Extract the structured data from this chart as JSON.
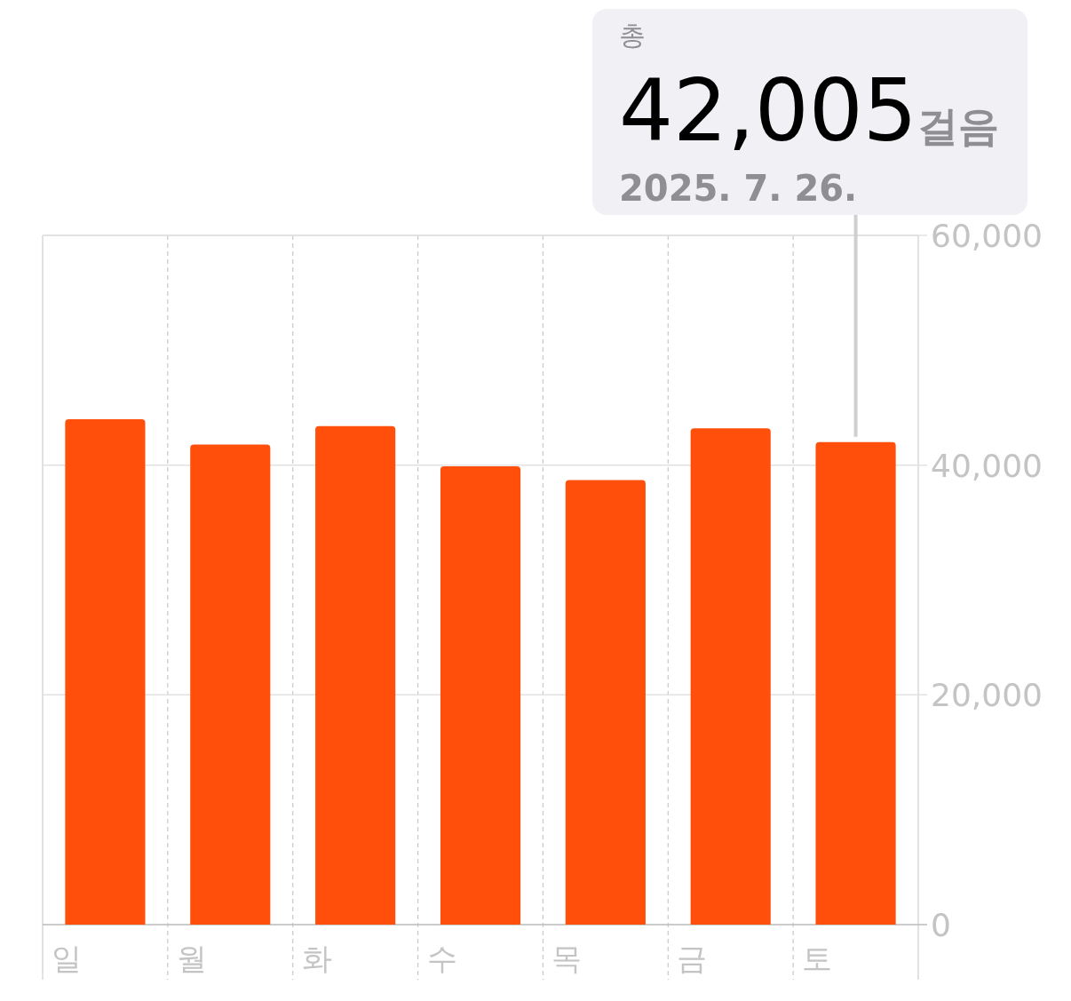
{
  "chart_data": {
    "type": "bar",
    "categories": [
      "일",
      "월",
      "화",
      "수",
      "목",
      "금",
      "토"
    ],
    "values": [
      44000,
      41800,
      43400,
      39900,
      38700,
      43200,
      42005
    ],
    "color": "#ff4f0a",
    "ylim": [
      0,
      60000
    ],
    "yticks": [
      {
        "value": 0,
        "label": "0"
      },
      {
        "value": 20000,
        "label": "20,000"
      },
      {
        "value": 40000,
        "label": "40,000"
      },
      {
        "value": 60000,
        "label": "60,000"
      }
    ],
    "grid": true,
    "annotations": [
      "총",
      "42,005걸음",
      "2025. 7. 26."
    ]
  }
}
